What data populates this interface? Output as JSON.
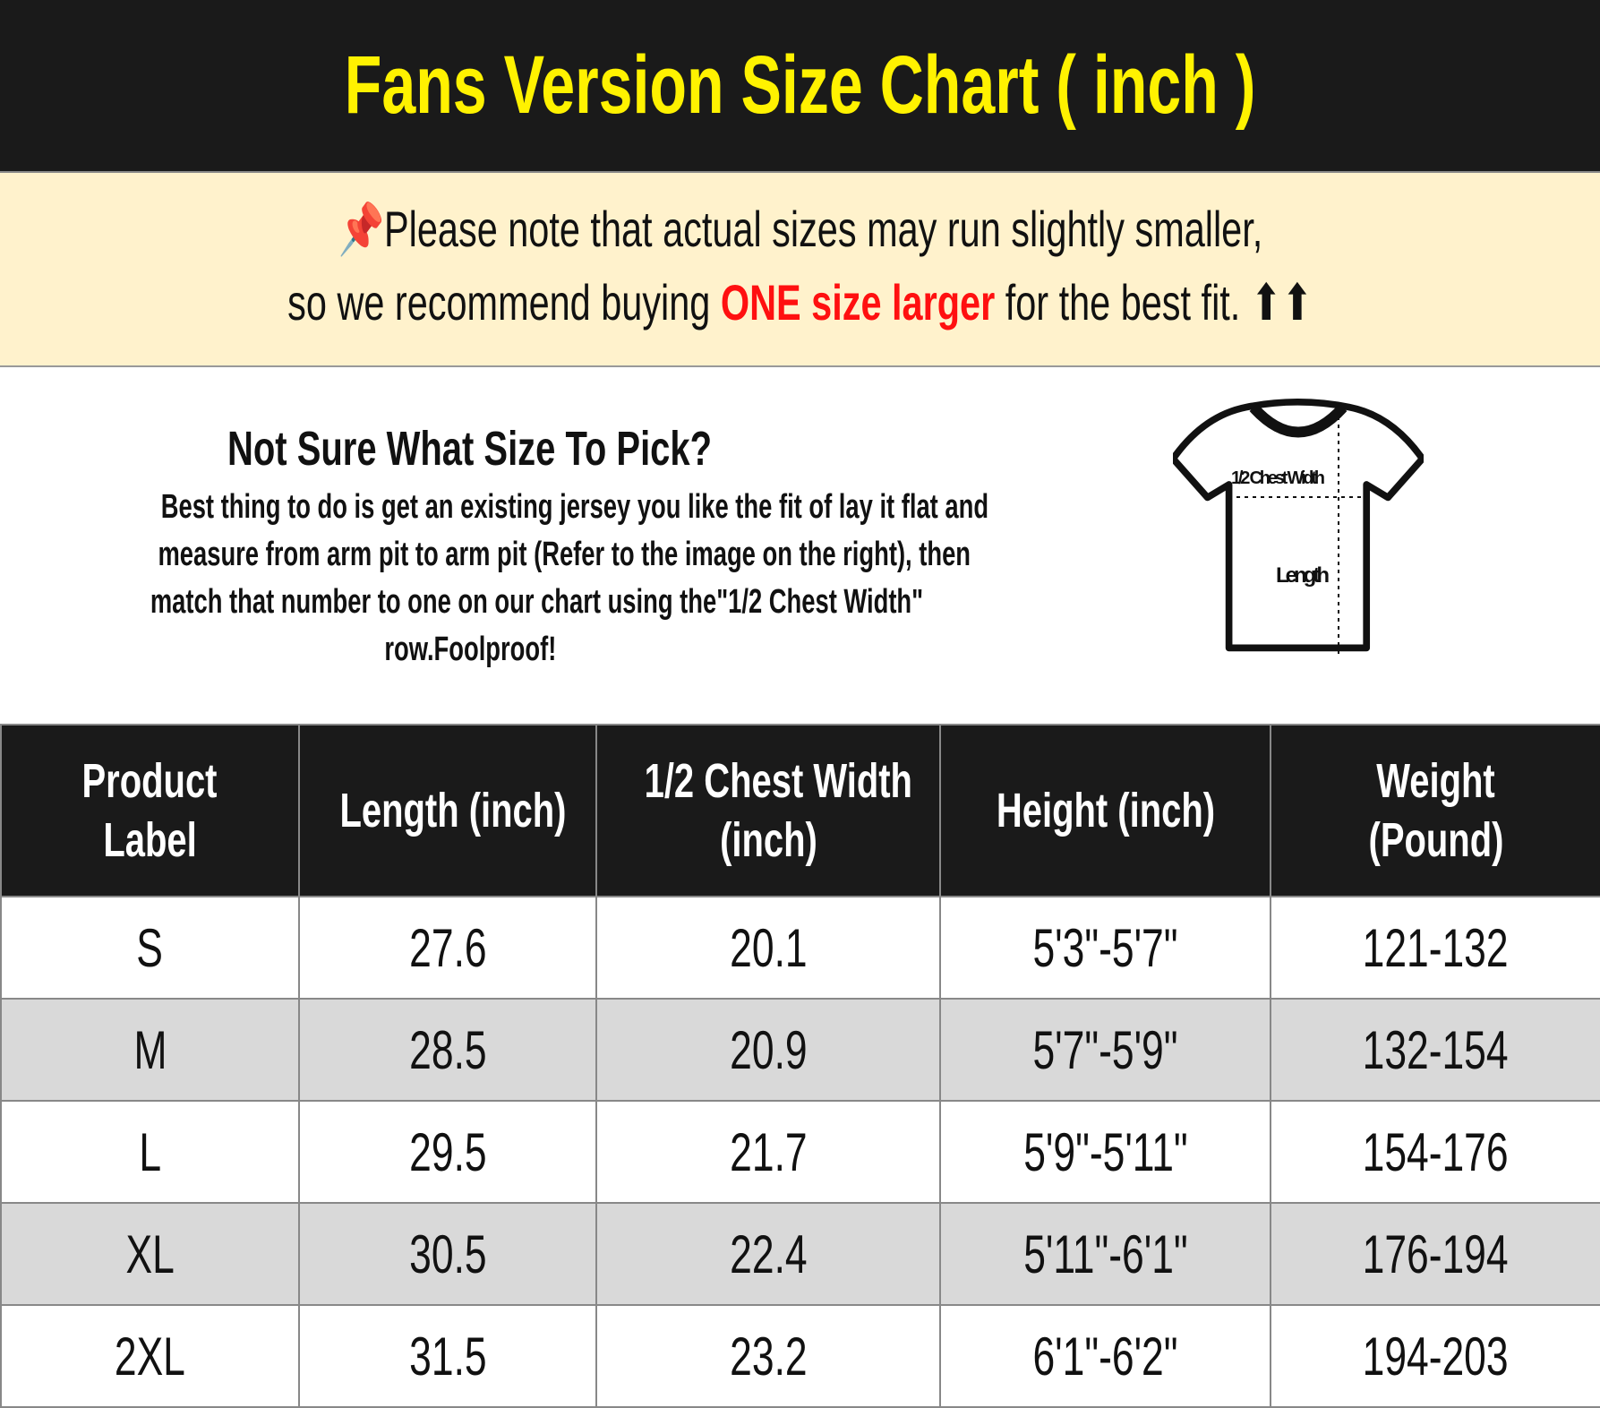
{
  "title": "Fans Version Size Chart ( inch )",
  "notice": {
    "icon": "pushpin-icon",
    "line1": "Please note that actual sizes may run slightly smaller,",
    "line2_pre": "so we recommend buying ",
    "line2_highlight": "ONE size larger",
    "line2_post": " for the best fit. ",
    "arrows": "⬆⬆",
    "highlight_color": "#ff1010"
  },
  "info": {
    "heading": "Not Sure What Size To Pick?",
    "lines": [
      "Best thing to do is get an existing jersey you like the fit of lay it flat and",
      "measure from arm pit to arm pit (Refer to the image on the right), then",
      "match that number to one on our chart using the\"1/2 Chest Width\"",
      "row.Foolproof!"
    ],
    "diagram": {
      "chest_label": "1/2 Chest Width",
      "length_label": "Length"
    }
  },
  "table": {
    "headers": [
      [
        "Product",
        "Label"
      ],
      [
        "Length (inch)"
      ],
      [
        "1/2 Chest Width",
        "(inch)"
      ],
      [
        "Height (inch)"
      ],
      [
        "Weight",
        "(Pound)"
      ]
    ],
    "rows": [
      [
        "S",
        "27.6",
        "20.1",
        "5'3\"-5'7\"",
        "121-132"
      ],
      [
        "M",
        "28.5",
        "20.9",
        "5'7\"-5'9\"",
        "132-154"
      ],
      [
        "L",
        "29.5",
        "21.7",
        "5'9\"-5'11\"",
        "154-176"
      ],
      [
        "XL",
        "30.5",
        "22.4",
        "5'11\"-6'1\"",
        "176-194"
      ],
      [
        "2XL",
        "31.5",
        "23.2",
        "6'1\"-6'2\"",
        "194-203"
      ]
    ]
  }
}
